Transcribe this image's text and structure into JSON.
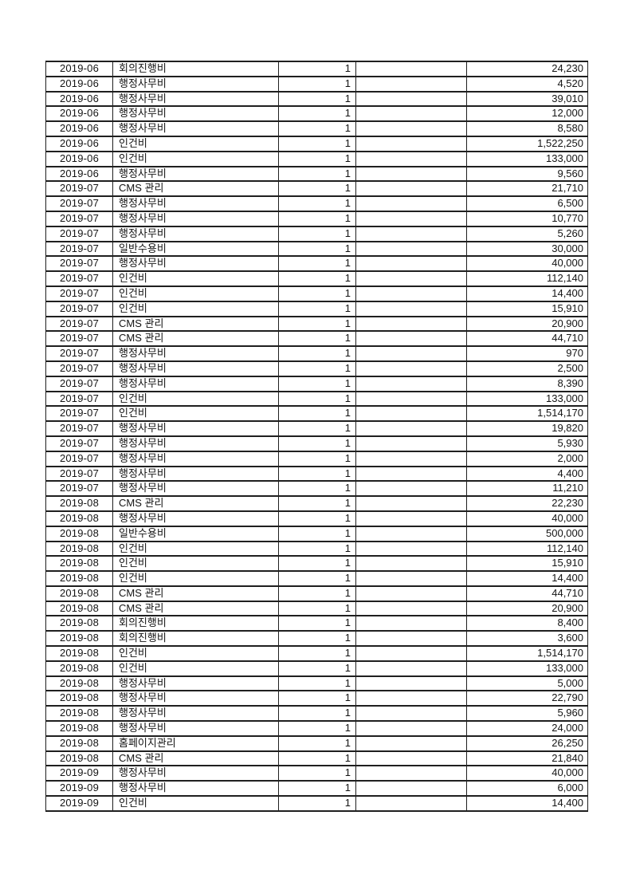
{
  "page": {
    "background_color": "#ffffff",
    "text_color": "#141414",
    "table_border_color": "#1f1f1f"
  },
  "table": {
    "rows": [
      {
        "month": "2019-06",
        "category": "회의진행비",
        "qty": "1",
        "blank": "",
        "amount": "24,230"
      },
      {
        "month": "2019-06",
        "category": "행정사무비",
        "qty": "1",
        "blank": "",
        "amount": "4,520"
      },
      {
        "month": "2019-06",
        "category": "행정사무비",
        "qty": "1",
        "blank": "",
        "amount": "39,010"
      },
      {
        "month": "2019-06",
        "category": "행정사무비",
        "qty": "1",
        "blank": "",
        "amount": "12,000"
      },
      {
        "month": "2019-06",
        "category": "행정사무비",
        "qty": "1",
        "blank": "",
        "amount": "8,580"
      },
      {
        "month": "2019-06",
        "category": "인건비",
        "qty": "1",
        "blank": "",
        "amount": "1,522,250"
      },
      {
        "month": "2019-06",
        "category": "인건비",
        "qty": "1",
        "blank": "",
        "amount": "133,000"
      },
      {
        "month": "2019-06",
        "category": "행정사무비",
        "qty": "1",
        "blank": "",
        "amount": "9,560"
      },
      {
        "month": "2019-07",
        "category": "CMS 관리",
        "qty": "1",
        "blank": "",
        "amount": "21,710"
      },
      {
        "month": "2019-07",
        "category": "행정사무비",
        "qty": "1",
        "blank": "",
        "amount": "6,500"
      },
      {
        "month": "2019-07",
        "category": "행정사무비",
        "qty": "1",
        "blank": "",
        "amount": "10,770"
      },
      {
        "month": "2019-07",
        "category": "행정사무비",
        "qty": "1",
        "blank": "",
        "amount": "5,260"
      },
      {
        "month": "2019-07",
        "category": "일반수용비",
        "qty": "1",
        "blank": "",
        "amount": "30,000"
      },
      {
        "month": "2019-07",
        "category": "행정사무비",
        "qty": "1",
        "blank": "",
        "amount": "40,000"
      },
      {
        "month": "2019-07",
        "category": "인건비",
        "qty": "1",
        "blank": "",
        "amount": "112,140"
      },
      {
        "month": "2019-07",
        "category": "인건비",
        "qty": "1",
        "blank": "",
        "amount": "14,400"
      },
      {
        "month": "2019-07",
        "category": "인건비",
        "qty": "1",
        "blank": "",
        "amount": "15,910"
      },
      {
        "month": "2019-07",
        "category": "CMS 관리",
        "qty": "1",
        "blank": "",
        "amount": "20,900"
      },
      {
        "month": "2019-07",
        "category": "CMS 관리",
        "qty": "1",
        "blank": "",
        "amount": "44,710"
      },
      {
        "month": "2019-07",
        "category": "행정사무비",
        "qty": "1",
        "blank": "",
        "amount": "970"
      },
      {
        "month": "2019-07",
        "category": "행정사무비",
        "qty": "1",
        "blank": "",
        "amount": "2,500"
      },
      {
        "month": "2019-07",
        "category": "행정사무비",
        "qty": "1",
        "blank": "",
        "amount": "8,390"
      },
      {
        "month": "2019-07",
        "category": "인건비",
        "qty": "1",
        "blank": "",
        "amount": "133,000"
      },
      {
        "month": "2019-07",
        "category": "인건비",
        "qty": "1",
        "blank": "",
        "amount": "1,514,170"
      },
      {
        "month": "2019-07",
        "category": "행정사무비",
        "qty": "1",
        "blank": "",
        "amount": "19,820"
      },
      {
        "month": "2019-07",
        "category": "행정사무비",
        "qty": "1",
        "blank": "",
        "amount": "5,930"
      },
      {
        "month": "2019-07",
        "category": "행정사무비",
        "qty": "1",
        "blank": "",
        "amount": "2,000"
      },
      {
        "month": "2019-07",
        "category": "행정사무비",
        "qty": "1",
        "blank": "",
        "amount": "4,400"
      },
      {
        "month": "2019-07",
        "category": "행정사무비",
        "qty": "1",
        "blank": "",
        "amount": "11,210"
      },
      {
        "month": "2019-08",
        "category": "CMS 관리",
        "qty": "1",
        "blank": "",
        "amount": "22,230"
      },
      {
        "month": "2019-08",
        "category": "행정사무비",
        "qty": "1",
        "blank": "",
        "amount": "40,000"
      },
      {
        "month": "2019-08",
        "category": "일반수용비",
        "qty": "1",
        "blank": "",
        "amount": "500,000"
      },
      {
        "month": "2019-08",
        "category": "인건비",
        "qty": "1",
        "blank": "",
        "amount": "112,140"
      },
      {
        "month": "2019-08",
        "category": "인건비",
        "qty": "1",
        "blank": "",
        "amount": "15,910"
      },
      {
        "month": "2019-08",
        "category": "인건비",
        "qty": "1",
        "blank": "",
        "amount": "14,400"
      },
      {
        "month": "2019-08",
        "category": "CMS 관리",
        "qty": "1",
        "blank": "",
        "amount": "44,710"
      },
      {
        "month": "2019-08",
        "category": "CMS 관리",
        "qty": "1",
        "blank": "",
        "amount": "20,900"
      },
      {
        "month": "2019-08",
        "category": "회의진행비",
        "qty": "1",
        "blank": "",
        "amount": "8,400"
      },
      {
        "month": "2019-08",
        "category": "회의진행비",
        "qty": "1",
        "blank": "",
        "amount": "3,600"
      },
      {
        "month": "2019-08",
        "category": "인건비",
        "qty": "1",
        "blank": "",
        "amount": "1,514,170"
      },
      {
        "month": "2019-08",
        "category": "인건비",
        "qty": "1",
        "blank": "",
        "amount": "133,000"
      },
      {
        "month": "2019-08",
        "category": "행정사무비",
        "qty": "1",
        "blank": "",
        "amount": "5,000"
      },
      {
        "month": "2019-08",
        "category": "행정사무비",
        "qty": "1",
        "blank": "",
        "amount": "22,790"
      },
      {
        "month": "2019-08",
        "category": "행정사무비",
        "qty": "1",
        "blank": "",
        "amount": "5,960"
      },
      {
        "month": "2019-08",
        "category": "행정사무비",
        "qty": "1",
        "blank": "",
        "amount": "24,000"
      },
      {
        "month": "2019-08",
        "category": "홈페이지관리",
        "qty": "1",
        "blank": "",
        "amount": "26,250"
      },
      {
        "month": "2019-08",
        "category": "CMS 관리",
        "qty": "1",
        "blank": "",
        "amount": "21,840"
      },
      {
        "month": "2019-09",
        "category": "행정사무비",
        "qty": "1",
        "blank": "",
        "amount": "40,000"
      },
      {
        "month": "2019-09",
        "category": "행정사무비",
        "qty": "1",
        "blank": "",
        "amount": "6,000"
      },
      {
        "month": "2019-09",
        "category": "인건비",
        "qty": "1",
        "blank": "",
        "amount": "14,400"
      }
    ]
  }
}
